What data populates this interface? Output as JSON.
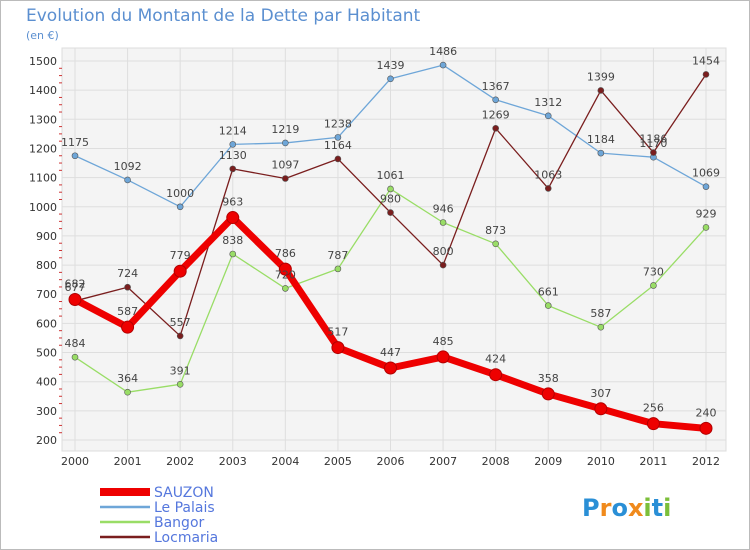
{
  "title": "Evolution du Montant de la Dette par Habitant",
  "subtitle": "(en €)",
  "logo": "Proxiti",
  "chart_data": {
    "type": "line",
    "title": "Evolution du Montant de la Dette par Habitant",
    "subtitle": "(en €)",
    "xlabel": "",
    "ylabel": "",
    "x": [
      "2000",
      "2001",
      "2002",
      "2003",
      "2004",
      "2005",
      "2006",
      "2007",
      "2008",
      "2009",
      "2010",
      "2011",
      "2012"
    ],
    "yticks": [
      200,
      300,
      400,
      500,
      600,
      700,
      800,
      900,
      1000,
      1100,
      1200,
      1300,
      1400,
      1500
    ],
    "ylim": [
      200,
      1500
    ],
    "grid": true,
    "legend": "bottom-left",
    "series": [
      {
        "name": "SAUZON",
        "color": "#ee0000",
        "values": [
          682,
          587,
          779,
          963,
          786,
          517,
          447,
          485,
          424,
          358,
          307,
          256,
          240
        ]
      },
      {
        "name": "Le Palais",
        "color": "#6ea6d8",
        "values": [
          1175,
          1092,
          1000,
          1214,
          1219,
          1238,
          1439,
          1486,
          1367,
          1312,
          1184,
          1170,
          1069
        ]
      },
      {
        "name": "Bangor",
        "color": "#99dd66",
        "values": [
          484,
          364,
          391,
          838,
          720,
          787,
          1061,
          946,
          873,
          661,
          587,
          730,
          929
        ]
      },
      {
        "name": "Locmaria",
        "color": "#7a1e1e",
        "values": [
          677,
          724,
          557,
          1130,
          1097,
          1164,
          980,
          800,
          1269,
          1063,
          1399,
          1186,
          1454
        ]
      }
    ]
  }
}
